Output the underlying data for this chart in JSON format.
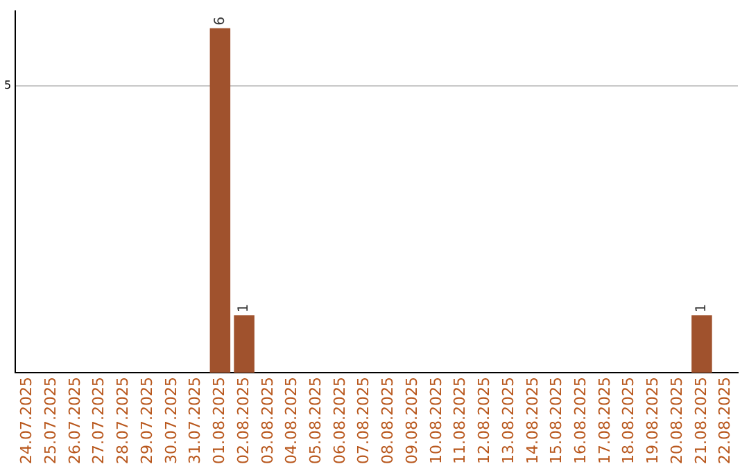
{
  "chart_data": {
    "type": "bar",
    "categories": [
      "24.07.2025",
      "25.07.2025",
      "26.07.2025",
      "27.07.2025",
      "28.07.2025",
      "29.07.2025",
      "30.07.2025",
      "31.07.2025",
      "01.08.2025",
      "02.08.2025",
      "03.08.2025",
      "04.08.2025",
      "05.08.2025",
      "06.08.2025",
      "07.08.2025",
      "08.08.2025",
      "09.08.2025",
      "10.08.2025",
      "11.08.2025",
      "12.08.2025",
      "13.08.2025",
      "14.08.2025",
      "15.08.2025",
      "16.08.2025",
      "17.08.2025",
      "18.08.2025",
      "19.08.2025",
      "20.08.2025",
      "21.08.2025",
      "22.08.2025"
    ],
    "values": [
      0,
      0,
      0,
      0,
      0,
      0,
      0,
      0,
      6,
      1,
      0,
      0,
      0,
      0,
      0,
      0,
      0,
      0,
      0,
      0,
      0,
      0,
      0,
      0,
      0,
      0,
      0,
      0,
      1,
      0
    ],
    "color": "#a0522d",
    "value_labels": [
      null,
      null,
      null,
      null,
      null,
      null,
      null,
      null,
      "6",
      "1",
      null,
      null,
      null,
      null,
      null,
      null,
      null,
      null,
      null,
      null,
      null,
      null,
      null,
      null,
      null,
      null,
      null,
      null,
      "1",
      null
    ],
    "ylim": [
      0,
      6.3
    ],
    "yticks": [
      5
    ],
    "grid": "y",
    "legend": false
  }
}
